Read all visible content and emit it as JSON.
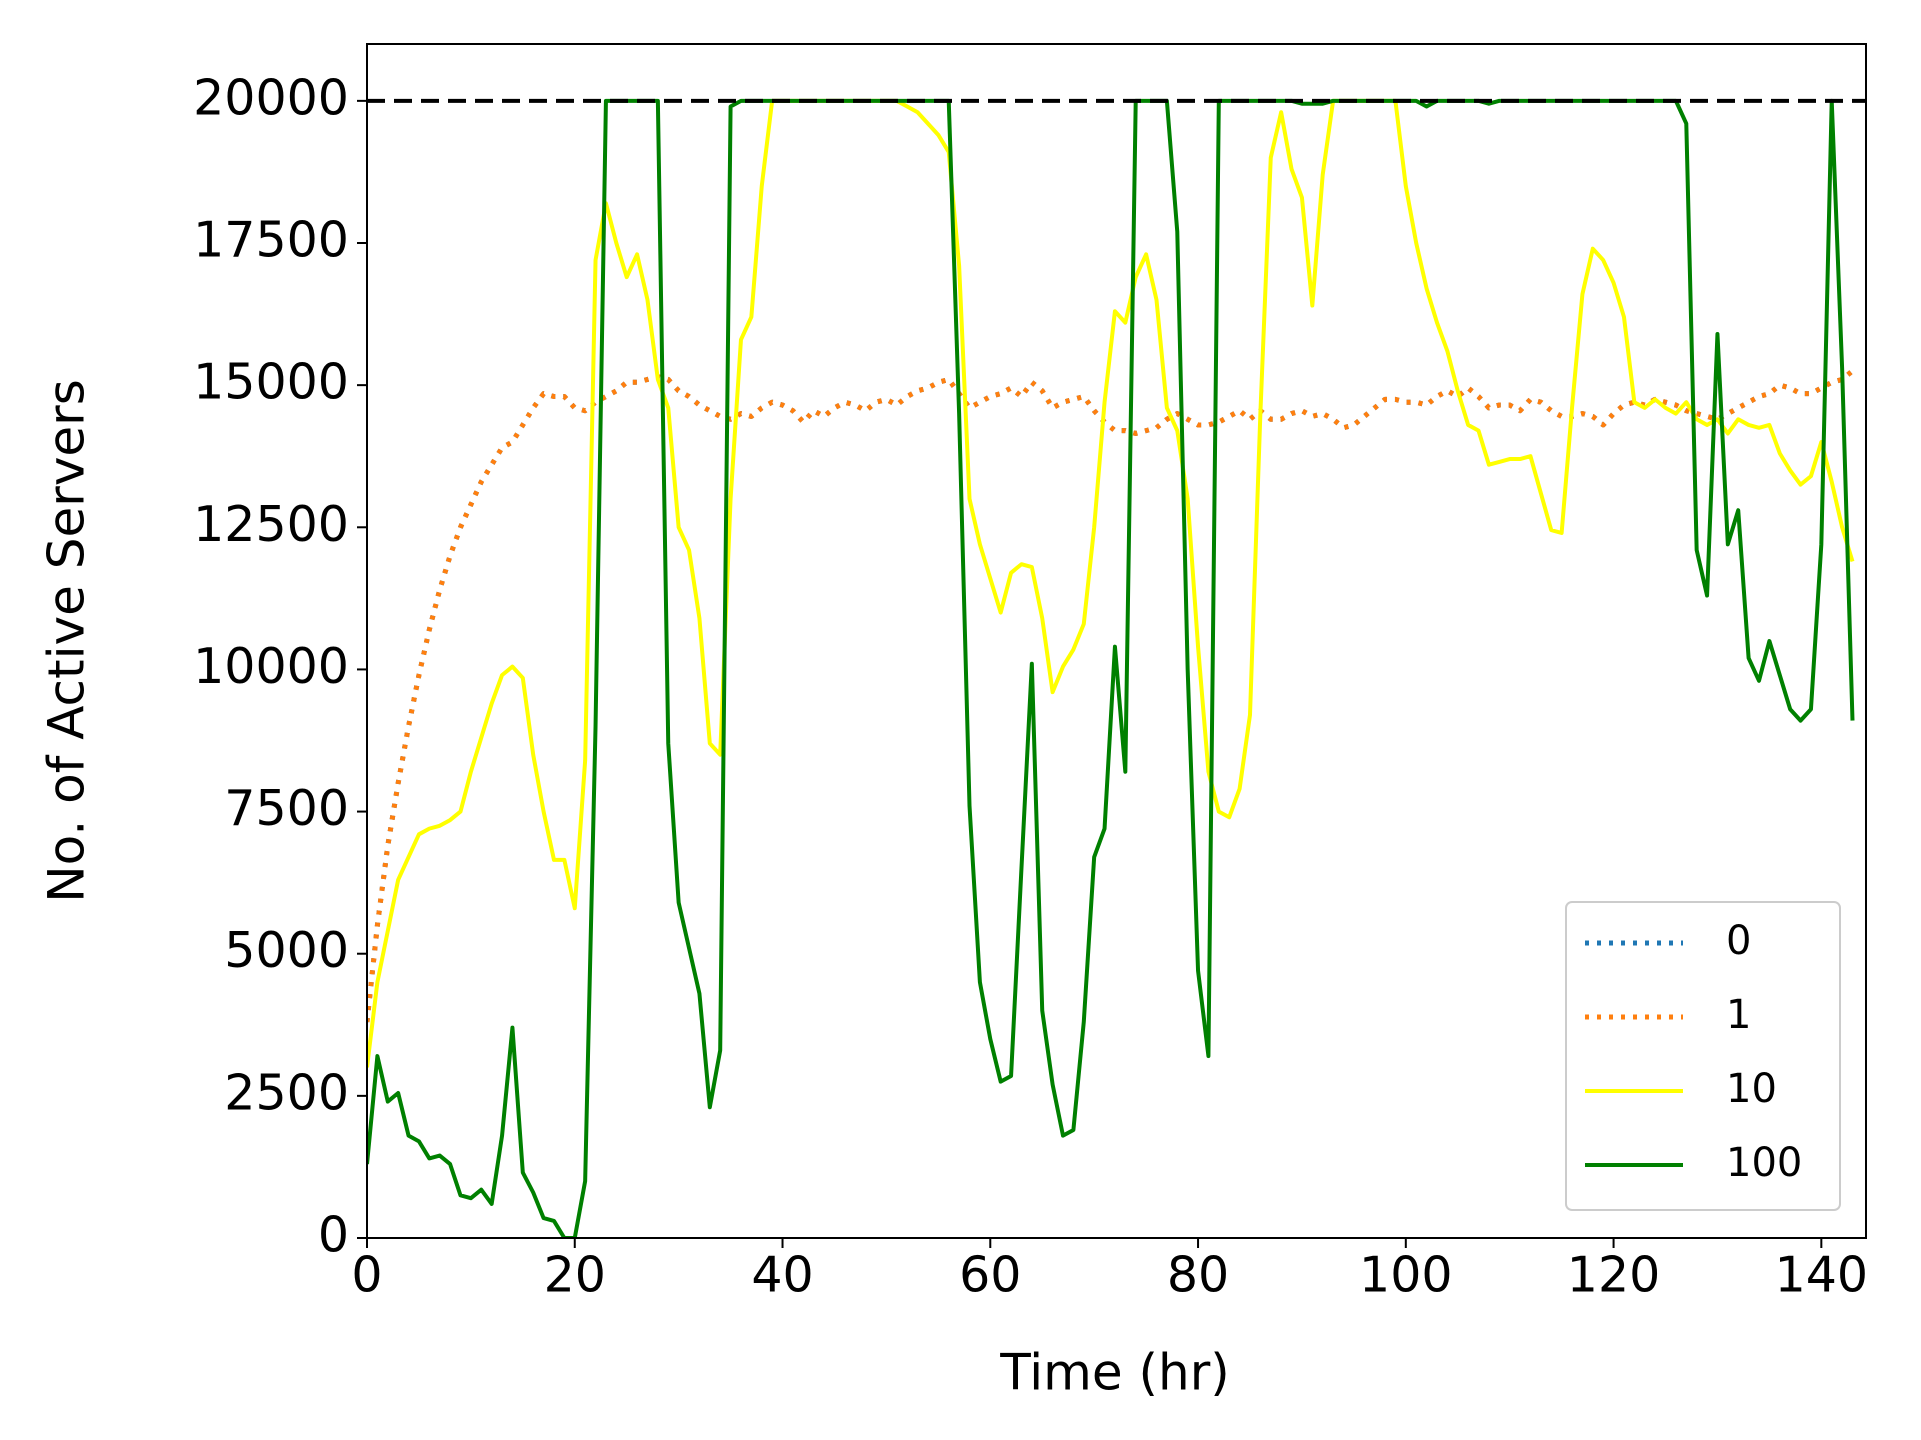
{
  "chart_data": {
    "type": "line",
    "xlabel": "Time (hr)",
    "ylabel": "No. of Active Servers",
    "xlim": [
      0,
      144.3
    ],
    "ylim": [
      0,
      21000
    ],
    "xticks": [
      0,
      20,
      40,
      60,
      80,
      100,
      120,
      140
    ],
    "yticks": [
      0,
      2500,
      5000,
      7500,
      10000,
      12500,
      15000,
      17500,
      20000
    ],
    "legend": "lower right",
    "hline": {
      "value": 20000,
      "color": "#000000",
      "linestyle": "dashed"
    },
    "x": [
      0,
      1,
      2,
      3,
      4,
      5,
      6,
      7,
      8,
      9,
      10,
      11,
      12,
      13,
      14,
      15,
      16,
      17,
      18,
      19,
      20,
      21,
      22,
      23,
      24,
      25,
      26,
      27,
      28,
      29,
      30,
      31,
      32,
      33,
      34,
      35,
      36,
      37,
      38,
      39,
      40,
      41,
      42,
      43,
      44,
      45,
      46,
      47,
      48,
      49,
      50,
      51,
      52,
      53,
      54,
      55,
      56,
      57,
      58,
      59,
      60,
      61,
      62,
      63,
      64,
      65,
      66,
      67,
      68,
      69,
      70,
      71,
      72,
      73,
      74,
      75,
      76,
      77,
      78,
      79,
      80,
      81,
      82,
      83,
      84,
      85,
      86,
      87,
      88,
      89,
      90,
      91,
      92,
      93,
      94,
      95,
      96,
      97,
      98,
      99,
      100,
      101,
      102,
      103,
      104,
      105,
      106,
      107,
      108,
      109,
      110,
      111,
      112,
      113,
      114,
      115,
      116,
      117,
      118,
      119,
      120,
      121,
      122,
      123,
      124,
      125,
      126,
      127,
      128,
      129,
      130,
      131,
      132,
      133,
      134,
      135,
      136,
      137,
      138,
      139,
      140,
      141,
      142,
      143
    ],
    "series": [
      {
        "name": "0",
        "color": "#1f77b4",
        "linestyle": "dotted",
        "values": [
          3800,
          5500,
          6900,
          8000,
          9000,
          9900,
          10700,
          11400,
          12000,
          12500,
          12900,
          13300,
          13600,
          13900,
          14000,
          14300,
          14600,
          14850,
          14800,
          14800,
          14600,
          14550,
          14700,
          14800,
          14900,
          15050,
          15050,
          15100,
          15150,
          15100,
          14900,
          14800,
          14650,
          14550,
          14450,
          14400,
          14500,
          14450,
          14600,
          14700,
          14650,
          14550,
          14350,
          14550,
          14450,
          14600,
          14700,
          14650,
          14550,
          14700,
          14750,
          14650,
          14800,
          14900,
          14950,
          15050,
          15100,
          14850,
          14600,
          14700,
          14800,
          14850,
          14950,
          14800,
          15050,
          14900,
          14600,
          14700,
          14750,
          14800,
          14550,
          14350,
          14200,
          14200,
          14150,
          14200,
          14250,
          14400,
          14500,
          14400,
          14300,
          14300,
          14350,
          14450,
          14550,
          14400,
          14550,
          14400,
          14400,
          14500,
          14550,
          14450,
          14500,
          14400,
          14250,
          14300,
          14450,
          14600,
          14750,
          14750,
          14700,
          14700,
          14650,
          14800,
          14900,
          14800,
          14950,
          14800,
          14600,
          14650,
          14650,
          14550,
          14750,
          14700,
          14550,
          14450,
          14450,
          14500,
          14450,
          14300,
          14500,
          14650,
          14700,
          14650,
          14750,
          14700,
          14650,
          14550,
          14500,
          14450,
          14400,
          14500,
          14600,
          14700,
          14800,
          14850,
          15000,
          14950,
          14850,
          14850,
          14950,
          15050,
          15100,
          15250
        ]
      },
      {
        "name": "1",
        "color": "#ff7f0e",
        "linestyle": "dotted",
        "values": [
          3800,
          5500,
          6900,
          8000,
          9000,
          9900,
          10700,
          11400,
          12000,
          12500,
          12900,
          13300,
          13600,
          13900,
          14000,
          14300,
          14600,
          14850,
          14800,
          14800,
          14600,
          14550,
          14700,
          14800,
          14900,
          15050,
          15050,
          15100,
          15150,
          15100,
          14900,
          14800,
          14650,
          14550,
          14450,
          14400,
          14500,
          14450,
          14600,
          14700,
          14650,
          14550,
          14350,
          14550,
          14450,
          14600,
          14700,
          14650,
          14550,
          14700,
          14750,
          14650,
          14800,
          14900,
          14950,
          15050,
          15100,
          14850,
          14600,
          14700,
          14800,
          14850,
          14950,
          14800,
          15050,
          14900,
          14600,
          14700,
          14750,
          14800,
          14550,
          14350,
          14200,
          14200,
          14150,
          14200,
          14250,
          14400,
          14500,
          14400,
          14300,
          14300,
          14350,
          14450,
          14550,
          14400,
          14550,
          14400,
          14400,
          14500,
          14550,
          14450,
          14500,
          14400,
          14250,
          14300,
          14450,
          14600,
          14750,
          14750,
          14700,
          14700,
          14650,
          14800,
          14900,
          14800,
          14950,
          14800,
          14600,
          14650,
          14650,
          14550,
          14750,
          14700,
          14550,
          14450,
          14450,
          14500,
          14450,
          14300,
          14500,
          14650,
          14700,
          14650,
          14750,
          14700,
          14650,
          14550,
          14500,
          14450,
          14400,
          14500,
          14600,
          14700,
          14800,
          14850,
          15000,
          14950,
          14850,
          14850,
          14950,
          15050,
          15100,
          15250
        ]
      },
      {
        "name": "10",
        "color": "#ffff00",
        "linestyle": "solid",
        "values": [
          3000,
          4500,
          5400,
          6300,
          6700,
          7100,
          7200,
          7250,
          7350,
          7500,
          8200,
          8800,
          9400,
          9900,
          10050,
          9850,
          8500,
          7500,
          6650,
          6650,
          5800,
          8400,
          17200,
          18200,
          17500,
          16900,
          17300,
          16500,
          15100,
          14600,
          12500,
          12100,
          10900,
          8700,
          8500,
          13000,
          15800,
          16200,
          18500,
          20000,
          20000,
          20000,
          20000,
          20000,
          20000,
          20000,
          20000,
          20000,
          20000,
          20000,
          20000,
          20000,
          19900,
          19800,
          19600,
          19400,
          19100,
          17100,
          13000,
          12200,
          11600,
          11000,
          11700,
          11850,
          11800,
          10900,
          9600,
          10050,
          10350,
          10800,
          12500,
          14700,
          16300,
          16100,
          16900,
          17300,
          16500,
          14600,
          14200,
          13000,
          10400,
          8200,
          7500,
          7400,
          7900,
          9200,
          14500,
          19000,
          19800,
          18800,
          18300,
          16400,
          18700,
          20000,
          20000,
          20000,
          20000,
          20000,
          20000,
          20000,
          18500,
          17500,
          16700,
          16100,
          15600,
          14900,
          14300,
          14200,
          13600,
          13650,
          13700,
          13700,
          13750,
          13100,
          12450,
          12400,
          14600,
          16600,
          17400,
          17200,
          16800,
          16200,
          14700,
          14600,
          14750,
          14600,
          14500,
          14700,
          14400,
          14300,
          14400,
          14150,
          14400,
          14300,
          14250,
          14300,
          13800,
          13500,
          13250,
          13400,
          14000,
          13300,
          12500,
          11900
        ]
      },
      {
        "name": "100",
        "color": "#008000",
        "linestyle": "solid",
        "values": [
          1300,
          3200,
          2400,
          2550,
          1800,
          1700,
          1400,
          1450,
          1300,
          750,
          700,
          850,
          600,
          1800,
          3700,
          1150,
          800,
          350,
          300,
          0,
          0,
          1000,
          9000,
          20000,
          20000,
          20000,
          20000,
          20000,
          20000,
          8700,
          5900,
          5100,
          4300,
          2300,
          3300,
          19900,
          20000,
          20000,
          20000,
          20000,
          20000,
          20000,
          20000,
          20000,
          20000,
          20000,
          20000,
          20000,
          20000,
          20000,
          20000,
          20000,
          20000,
          20000,
          20000,
          20000,
          20000,
          14500,
          7600,
          4500,
          3500,
          2750,
          2850,
          6500,
          10100,
          4000,
          2700,
          1800,
          1900,
          3800,
          6700,
          7200,
          10400,
          8200,
          20000,
          20000,
          20000,
          20000,
          17700,
          10000,
          4700,
          3200,
          20000,
          20000,
          20000,
          20000,
          20000,
          20000,
          20000,
          20000,
          19950,
          19950,
          19950,
          20000,
          20000,
          20000,
          20000,
          20000,
          20000,
          20000,
          20000,
          20000,
          19900,
          20000,
          20000,
          20000,
          20000,
          20000,
          19950,
          20000,
          20000,
          20000,
          20000,
          20000,
          20000,
          20000,
          20000,
          20000,
          20000,
          20000,
          20000,
          20000,
          20000,
          20000,
          20000,
          20000,
          20000,
          19600,
          12100,
          11300,
          15900,
          12200,
          12800,
          10200,
          9800,
          10500,
          9900,
          9300,
          9100,
          9300,
          12200,
          20000,
          15300,
          9100
        ]
      }
    ]
  }
}
